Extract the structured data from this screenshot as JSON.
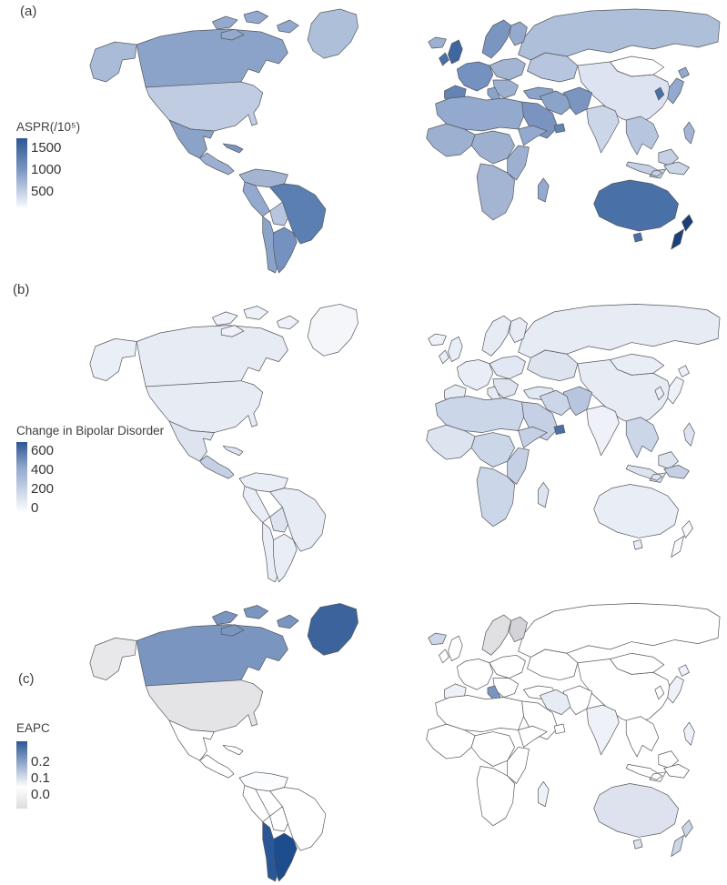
{
  "figure": {
    "background": "#ffffff",
    "border_color": "#55585c",
    "accent_dark_blue": "#2d5792"
  },
  "panels": [
    {
      "id": "a",
      "label": "(a)",
      "legend": {
        "title": "ASPR(/10⁵)",
        "ticks": [
          "1500",
          "1000",
          "500"
        ],
        "gradient": [
          "#2d5792 0%",
          "#7b95c1 45%",
          "#f7f9fc 100%"
        ]
      },
      "region_colors": {
        "arctic-islands": "#93a9cd",
        "greenland": "#aebfd9",
        "alaska": "#a9bbd6",
        "canada": "#8ba3c9",
        "usa": "#bfcce2",
        "mexico": "#8ba3c9",
        "central-america": "#9db0d0",
        "caribbean": "#7b95c1",
        "colombia-venezuela": "#a3b5d3",
        "peru": "#93a9cd",
        "brazil": "#5c7fb3",
        "bolivia": "#b7c5de",
        "chile": "#8ba3c9",
        "argentina": "#7491bf",
        "iceland": "#9db0d0",
        "ireland": "#4a70a8",
        "uk": "#3f669f",
        "scandinavia": "#7b95c1",
        "finland": "#93a9cd",
        "west-europe": "#7491bf",
        "iberia": "#6584b6",
        "italy": "#8ba3c9",
        "central-europe": "#a3b5d3",
        "east-europe": "#9db0d0",
        "turkey": "#8ba3c9",
        "russia": "#aebfd9",
        "kazakhstan": "#b7c5de",
        "mongolia": "#ffffff",
        "china": "#dde3f0",
        "india": "#ccd6e9",
        "pakistan-afghanistan": "#7b95c1",
        "iran": "#8ba3c9",
        "middle-east": "#7b93c0",
        "uae": "#6584b6",
        "north-africa": "#93a9cd",
        "west-africa": "#9db0d0",
        "central-africa": "#9db0d0",
        "horn-africa": "#93a9cd",
        "east-africa-strip": "#9db0d0",
        "southern-africa": "#a3b5d3",
        "madagascar": "#93a9cd",
        "southeast-asia": "#b7c5de",
        "borneo": "#c5d0e4",
        "indonesia": "#c5d0e4",
        "philippines": "#a3b5d3",
        "japan": "#93a9cd",
        "korea": "#4a70a8",
        "png": "#ccd6e9",
        "australia": "#4a70a8",
        "tasmania": "#4a70a8",
        "new-zealand": "#1d3f78"
      }
    },
    {
      "id": "b",
      "label": "(b)",
      "legend": {
        "title": "Change in Bipolar Disorder",
        "ticks": [
          "600",
          "400",
          "200",
          "0"
        ],
        "gradient": [
          "#2d5792 0%",
          "#93a9cd 35%",
          "#ffffff 95%"
        ]
      },
      "region_colors": {
        "arctic-islands": "#eef1f8",
        "greenland": "#f4f6fa",
        "alaska": "#eaeef6",
        "canada": "#e6ebf4",
        "usa": "#e6ebf4",
        "mexico": "#dde4f0",
        "central-america": "#c5d0e4",
        "caribbean": "#dde4f0",
        "colombia-venezuela": "#e9edf6",
        "peru": "#e9edf6",
        "brazil": "#e6ebf4",
        "bolivia": "#dde4f0",
        "chile": "#e9edf6",
        "argentina": "#e9edf6",
        "iceland": "#eef1f8",
        "ireland": "#e9edf6",
        "uk": "#e9edf6",
        "scandinavia": "#e6ebf4",
        "finland": "#e6ebf4",
        "west-europe": "#e9edf6",
        "iberia": "#e6ebf4",
        "italy": "#e6ebf4",
        "central-europe": "#e2e8f3",
        "east-europe": "#dde4f0",
        "turkey": "#e2e8f3",
        "russia": "#e6ebf4",
        "kazakhstan": "#dde4f0",
        "mongolia": "#e9edf6",
        "china": "#e6ebf4",
        "india": "#eef1f8",
        "pakistan-afghanistan": "#b7c5de",
        "iran": "#ccd6e9",
        "middle-east": "#c5d0e4",
        "uae": "#4a70a8",
        "north-africa": "#ccd6e9",
        "west-africa": "#dde4f0",
        "central-africa": "#ccd6e9",
        "horn-africa": "#c5d0e4",
        "east-africa-strip": "#c5d0e4",
        "southern-africa": "#ccd6e9",
        "madagascar": "#dde4f0",
        "southeast-asia": "#ccd6e9",
        "borneo": "#dde4f0",
        "indonesia": "#dde4f0",
        "philippines": "#dde4f0",
        "japan": "#eef1f8",
        "korea": "#e9edf6",
        "png": "#c5d0e4",
        "australia": "#e9edf6",
        "tasmania": "#e9edf6",
        "new-zealand": "#f7f9fc"
      }
    },
    {
      "id": "c",
      "label": "(c)",
      "legend": {
        "title": "EAPC",
        "ticks": [
          "0.2",
          "0.1",
          "0.0"
        ],
        "gradient": [
          "#2d5792 0%",
          "#8aa2c6 30%",
          "#ffffff 68%",
          "#dcdcdf 100%"
        ]
      },
      "region_colors": {
        "arctic-islands": "#7b95c1",
        "greenland": "#3c639c",
        "alaska": "#e8e8ea",
        "canada": "#7b95c1",
        "usa": "#e4e4e7",
        "mexico": "#ffffff",
        "central-america": "#ffffff",
        "caribbean": "#ffffff",
        "colombia-venezuela": "#fbfcfe",
        "peru": "#ffffff",
        "brazil": "#ffffff",
        "bolivia": "#ffffff",
        "chile": "#2a5897",
        "argentina": "#1d4d8c",
        "iceland": "#ccd6e9",
        "ireland": "#ffffff",
        "uk": "#ffffff",
        "scandinavia": "#e0e0e3",
        "finland": "#d4d4d8",
        "west-europe": "#ffffff",
        "iberia": "#eef1f8",
        "italy": "#7b95c1",
        "central-europe": "#ffffff",
        "east-europe": "#ffffff",
        "turkey": "#ffffff",
        "russia": "#ffffff",
        "kazakhstan": "#ffffff",
        "mongolia": "#ffffff",
        "china": "#ffffff",
        "india": "#eef1f8",
        "pakistan-afghanistan": "#ffffff",
        "iran": "#e6ebf4",
        "middle-east": "#ffffff",
        "uae": "#ffffff",
        "north-africa": "#ffffff",
        "west-africa": "#ffffff",
        "central-africa": "#ffffff",
        "horn-africa": "#ffffff",
        "east-africa-strip": "#ffffff",
        "southern-africa": "#ffffff",
        "madagascar": "#eef1f8",
        "southeast-asia": "#ffffff",
        "borneo": "#ffffff",
        "indonesia": "#ffffff",
        "philippines": "#eef1f8",
        "japan": "#eef1f8",
        "korea": "#ffffff",
        "png": "#ffffff",
        "australia": "#dde2ee",
        "tasmania": "#dde2ee",
        "new-zealand": "#ccd6e9"
      }
    }
  ]
}
